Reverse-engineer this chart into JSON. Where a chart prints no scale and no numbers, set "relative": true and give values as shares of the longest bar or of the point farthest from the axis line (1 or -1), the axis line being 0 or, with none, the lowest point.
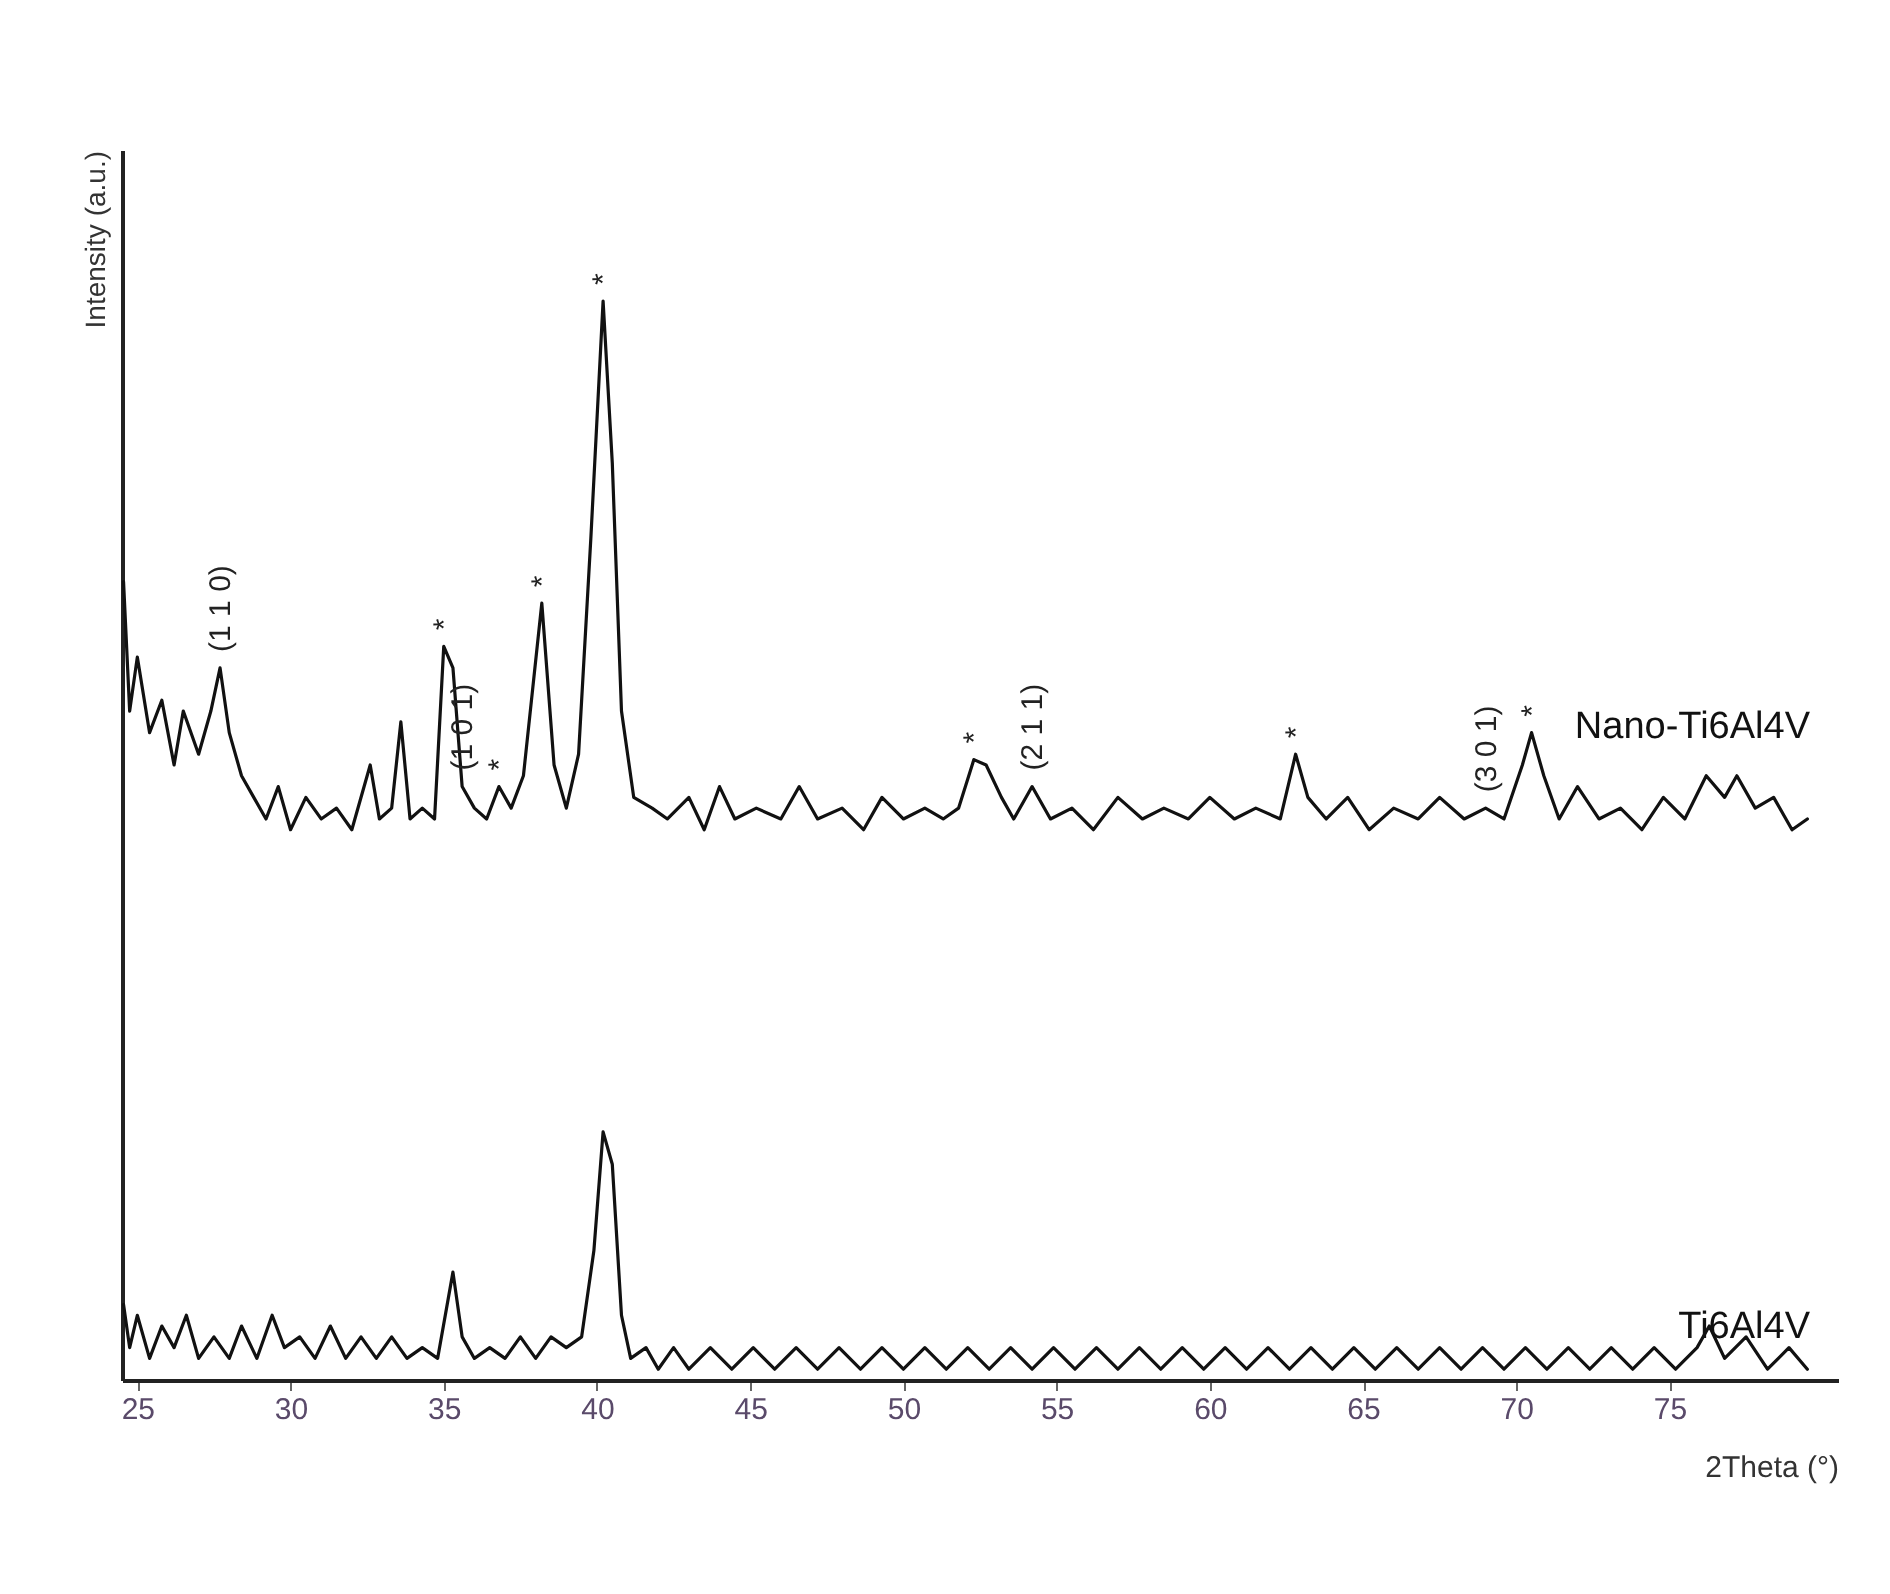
{
  "chart_data": {
    "type": "line",
    "relative": true,
    "xlabel": "2Theta (°)",
    "ylabel": "Intensity (a.u.)",
    "xlim": [
      24.5,
      80.5
    ],
    "xticks": [
      25,
      30,
      35,
      40,
      45,
      50,
      55,
      60,
      65,
      70,
      75
    ],
    "grid": false,
    "legend": false,
    "line_style": "solid",
    "marker": "none",
    "series": [
      {
        "name": "Nano-Ti6Al4V",
        "color": "#111111",
        "x": [
          24.55,
          24.75,
          25,
          25.4,
          25.8,
          26.2,
          26.5,
          27,
          27.4,
          27.7,
          28,
          28.4,
          28.8,
          29.2,
          29.6,
          30,
          30.5,
          31,
          31.5,
          32,
          32.6,
          32.9,
          33.3,
          33.6,
          33.9,
          34.3,
          34.7,
          35,
          35.3,
          35.6,
          36,
          36.4,
          36.8,
          37.2,
          37.6,
          38.2,
          38.6,
          39,
          39.4,
          39.8,
          40.2,
          40.5,
          40.8,
          41.2,
          41.8,
          42.3,
          43,
          43.5,
          44,
          44.5,
          45.2,
          46,
          46.6,
          47.2,
          48,
          48.7,
          49.3,
          50,
          50.7,
          51.3,
          51.8,
          52.3,
          52.7,
          53.2,
          53.6,
          54.2,
          54.8,
          55.5,
          56.2,
          57,
          57.8,
          58.5,
          59.3,
          60,
          60.8,
          61.5,
          62.3,
          62.8,
          63.2,
          63.8,
          64.5,
          65.2,
          66,
          66.8,
          67.5,
          68.3,
          69,
          69.6,
          70.2,
          70.5,
          70.9,
          71.4,
          72,
          72.7,
          73.4,
          74.1,
          74.8,
          75.5,
          76.2,
          76.8,
          77.2,
          77.8,
          78.4,
          79,
          79.5
        ],
        "values": [
          0.74,
          0.62,
          0.67,
          0.6,
          0.63,
          0.57,
          0.62,
          0.58,
          0.62,
          0.66,
          0.6,
          0.56,
          0.54,
          0.52,
          0.55,
          0.51,
          0.54,
          0.52,
          0.53,
          0.51,
          0.57,
          0.52,
          0.53,
          0.61,
          0.52,
          0.53,
          0.52,
          0.68,
          0.66,
          0.55,
          0.53,
          0.52,
          0.55,
          0.53,
          0.56,
          0.72,
          0.57,
          0.53,
          0.58,
          0.78,
          1.0,
          0.85,
          0.62,
          0.54,
          0.53,
          0.52,
          0.54,
          0.51,
          0.55,
          0.52,
          0.53,
          0.52,
          0.55,
          0.52,
          0.53,
          0.51,
          0.54,
          0.52,
          0.53,
          0.52,
          0.53,
          0.575,
          0.57,
          0.54,
          0.52,
          0.55,
          0.52,
          0.53,
          0.51,
          0.54,
          0.52,
          0.53,
          0.52,
          0.54,
          0.52,
          0.53,
          0.52,
          0.58,
          0.54,
          0.52,
          0.54,
          0.51,
          0.53,
          0.52,
          0.54,
          0.52,
          0.53,
          0.52,
          0.57,
          0.6,
          0.56,
          0.52,
          0.55,
          0.52,
          0.53,
          0.51,
          0.54,
          0.52,
          0.56,
          0.54,
          0.56,
          0.53,
          0.54,
          0.51,
          0.52
        ]
      },
      {
        "name": "Ti6Al4V",
        "color": "#111111",
        "x": [
          24.55,
          24.75,
          25,
          25.4,
          25.8,
          26.2,
          26.6,
          27,
          27.5,
          28,
          28.4,
          28.9,
          29.4,
          29.8,
          30.3,
          30.8,
          31.3,
          31.8,
          32.3,
          32.8,
          33.3,
          33.8,
          34.3,
          34.8,
          35.3,
          35.6,
          36,
          36.5,
          37,
          37.5,
          38,
          38.5,
          39,
          39.5,
          39.9,
          40.2,
          40.5,
          40.8,
          41.1,
          41.6,
          42,
          42.5,
          43,
          43.7,
          44.4,
          45.1,
          45.8,
          46.5,
          47.2,
          47.9,
          48.6,
          49.3,
          50,
          50.7,
          51.4,
          52.1,
          52.8,
          53.5,
          54.2,
          54.9,
          55.6,
          56.3,
          57,
          57.7,
          58.4,
          59.1,
          59.8,
          60.5,
          61.2,
          61.9,
          62.6,
          63.3,
          64,
          64.7,
          65.4,
          66.1,
          66.8,
          67.5,
          68.2,
          68.9,
          69.6,
          70.3,
          71,
          71.7,
          72.4,
          73.1,
          73.8,
          74.5,
          75.2,
          75.9,
          76.3,
          76.8,
          77.5,
          78.2,
          78.9,
          79.5
        ],
        "values": [
          0.07,
          0.03,
          0.06,
          0.02,
          0.05,
          0.03,
          0.06,
          0.02,
          0.04,
          0.02,
          0.05,
          0.02,
          0.06,
          0.03,
          0.04,
          0.02,
          0.05,
          0.02,
          0.04,
          0.02,
          0.04,
          0.02,
          0.03,
          0.02,
          0.1,
          0.04,
          0.02,
          0.03,
          0.02,
          0.04,
          0.02,
          0.04,
          0.03,
          0.04,
          0.12,
          0.23,
          0.2,
          0.06,
          0.02,
          0.03,
          0.01,
          0.03,
          0.01,
          0.03,
          0.01,
          0.03,
          0.01,
          0.03,
          0.01,
          0.03,
          0.01,
          0.03,
          0.01,
          0.03,
          0.01,
          0.03,
          0.01,
          0.03,
          0.01,
          0.03,
          0.01,
          0.03,
          0.01,
          0.03,
          0.01,
          0.03,
          0.01,
          0.03,
          0.01,
          0.03,
          0.01,
          0.03,
          0.01,
          0.03,
          0.01,
          0.03,
          0.01,
          0.03,
          0.01,
          0.03,
          0.01,
          0.03,
          0.01,
          0.03,
          0.01,
          0.03,
          0.01,
          0.03,
          0.01,
          0.03,
          0.05,
          0.02,
          0.04,
          0.01,
          0.03,
          0.01
        ]
      }
    ],
    "annotations": [
      {
        "text": "(1 1 0)",
        "x": 27.7,
        "y": 0.66
      },
      {
        "text": "*",
        "x": 35,
        "y": 0.68
      },
      {
        "text": "(1 0 1)",
        "x": 35.6,
        "y": 0.55
      },
      {
        "text": "*",
        "x": 36.8,
        "y": 0.55
      },
      {
        "text": "*",
        "x": 38.2,
        "y": 0.72
      },
      {
        "text": "*",
        "x": 40.2,
        "y": 1.0
      },
      {
        "text": "*",
        "x": 52.3,
        "y": 0.575
      },
      {
        "text": "(2 1 1)",
        "x": 54.2,
        "y": 0.55
      },
      {
        "text": "*",
        "x": 62.8,
        "y": 0.58
      },
      {
        "text": "(3 0 1)",
        "x": 69,
        "y": 0.53
      },
      {
        "text": "*",
        "x": 70.5,
        "y": 0.6
      }
    ]
  }
}
